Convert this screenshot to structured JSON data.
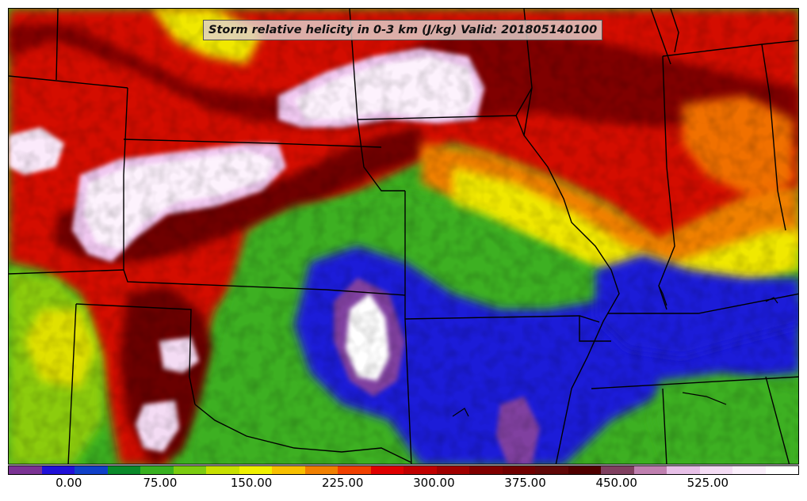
{
  "title": "Storm relative helicity in 0-3 km (J/kg) Valid: 201805140100",
  "colorbar": {
    "colors": [
      "#7b3294",
      "#2010d8",
      "#1040c8",
      "#0a8a2a",
      "#38b020",
      "#7ccc10",
      "#c8e000",
      "#f0f000",
      "#f8c000",
      "#f08000",
      "#f04000",
      "#e00000",
      "#c00000",
      "#a00000",
      "#800000",
      "#700000",
      "#600808",
      "#500000",
      "#804060",
      "#c080b0",
      "#e8c0e8",
      "#f4dcf4",
      "#fbeffb",
      "#ffffff"
    ],
    "tick_labels": [
      "0.00",
      "75.00",
      "150.00",
      "225.00",
      "300.00",
      "375.00",
      "450.00",
      "525.00"
    ],
    "tick_values": [
      0,
      75,
      150,
      225,
      300,
      375,
      450,
      525
    ],
    "min": -50,
    "max": 600
  },
  "map": {
    "field": "Storm relative helicity in 0-3 km",
    "units": "J/kg",
    "valid": "201805140100"
  }
}
